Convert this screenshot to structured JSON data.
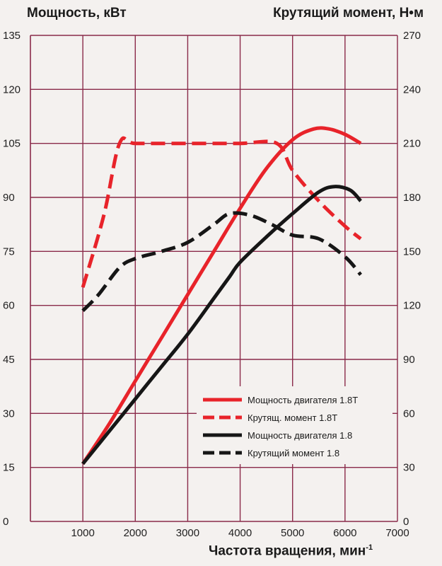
{
  "header": {
    "left_axis_title": "Мощность, кВт",
    "right_axis_title": "Крутящий момент, Н•м"
  },
  "chart_data": {
    "type": "line",
    "xlabel": "Частота вращения, мин",
    "xlabel_superscript": "-1",
    "ylabel": "Мощность, кВт",
    "y2label": "Крутящий момент, Н•м",
    "xlim": [
      0,
      7000
    ],
    "ylim": [
      0,
      135
    ],
    "y2lim": [
      0,
      270
    ],
    "x_ticks": [
      1000,
      2000,
      3000,
      4000,
      5000,
      6000,
      7000
    ],
    "y_ticks": [
      0,
      15,
      30,
      45,
      60,
      75,
      90,
      105,
      120,
      135
    ],
    "y2_ticks": [
      0,
      30,
      60,
      90,
      120,
      150,
      180,
      210,
      240,
      270
    ],
    "grid": true,
    "legend_position": "bottom-right",
    "series": [
      {
        "name": "Мощность двигателя 1.8T",
        "axis": "left",
        "color": "#e8232a",
        "style": "solid",
        "points": [
          [
            1000,
            16
          ],
          [
            1500,
            27
          ],
          [
            2000,
            39
          ],
          [
            2500,
            51
          ],
          [
            3000,
            63
          ],
          [
            3500,
            75
          ],
          [
            4000,
            87
          ],
          [
            4500,
            98
          ],
          [
            5000,
            106
          ],
          [
            5400,
            109
          ],
          [
            5700,
            109
          ],
          [
            6000,
            107.5
          ],
          [
            6300,
            105
          ]
        ]
      },
      {
        "name": "Крутящ. момент 1.8T",
        "axis": "right",
        "color": "#e8232a",
        "style": "dashed",
        "points": [
          [
            1000,
            130
          ],
          [
            1400,
            170
          ],
          [
            1700,
            210
          ],
          [
            2000,
            210
          ],
          [
            3000,
            210
          ],
          [
            4000,
            210
          ],
          [
            4700,
            210
          ],
          [
            5000,
            195
          ],
          [
            5500,
            178
          ],
          [
            6000,
            164
          ],
          [
            6300,
            157
          ]
        ]
      },
      {
        "name": "Мощность двигателя 1.8",
        "axis": "left",
        "color": "#161616",
        "style": "solid",
        "points": [
          [
            1000,
            16
          ],
          [
            1500,
            25
          ],
          [
            2000,
            34
          ],
          [
            2500,
            43
          ],
          [
            3000,
            52
          ],
          [
            3500,
            62
          ],
          [
            3800,
            68
          ],
          [
            4000,
            72
          ],
          [
            4500,
            79
          ],
          [
            5000,
            85.5
          ],
          [
            5500,
            91.5
          ],
          [
            5800,
            93
          ],
          [
            6100,
            92
          ],
          [
            6300,
            89
          ]
        ]
      },
      {
        "name": "Крутящий момент 1.8",
        "axis": "right",
        "color": "#161616",
        "style": "dashed",
        "points": [
          [
            1000,
            117
          ],
          [
            1300,
            126
          ],
          [
            1700,
            141
          ],
          [
            2000,
            146
          ],
          [
            2500,
            150
          ],
          [
            3000,
            155
          ],
          [
            3500,
            165
          ],
          [
            3800,
            171
          ],
          [
            4200,
            170
          ],
          [
            4600,
            165
          ],
          [
            5000,
            159
          ],
          [
            5500,
            157
          ],
          [
            6000,
            147
          ],
          [
            6300,
            137
          ]
        ]
      }
    ]
  }
}
